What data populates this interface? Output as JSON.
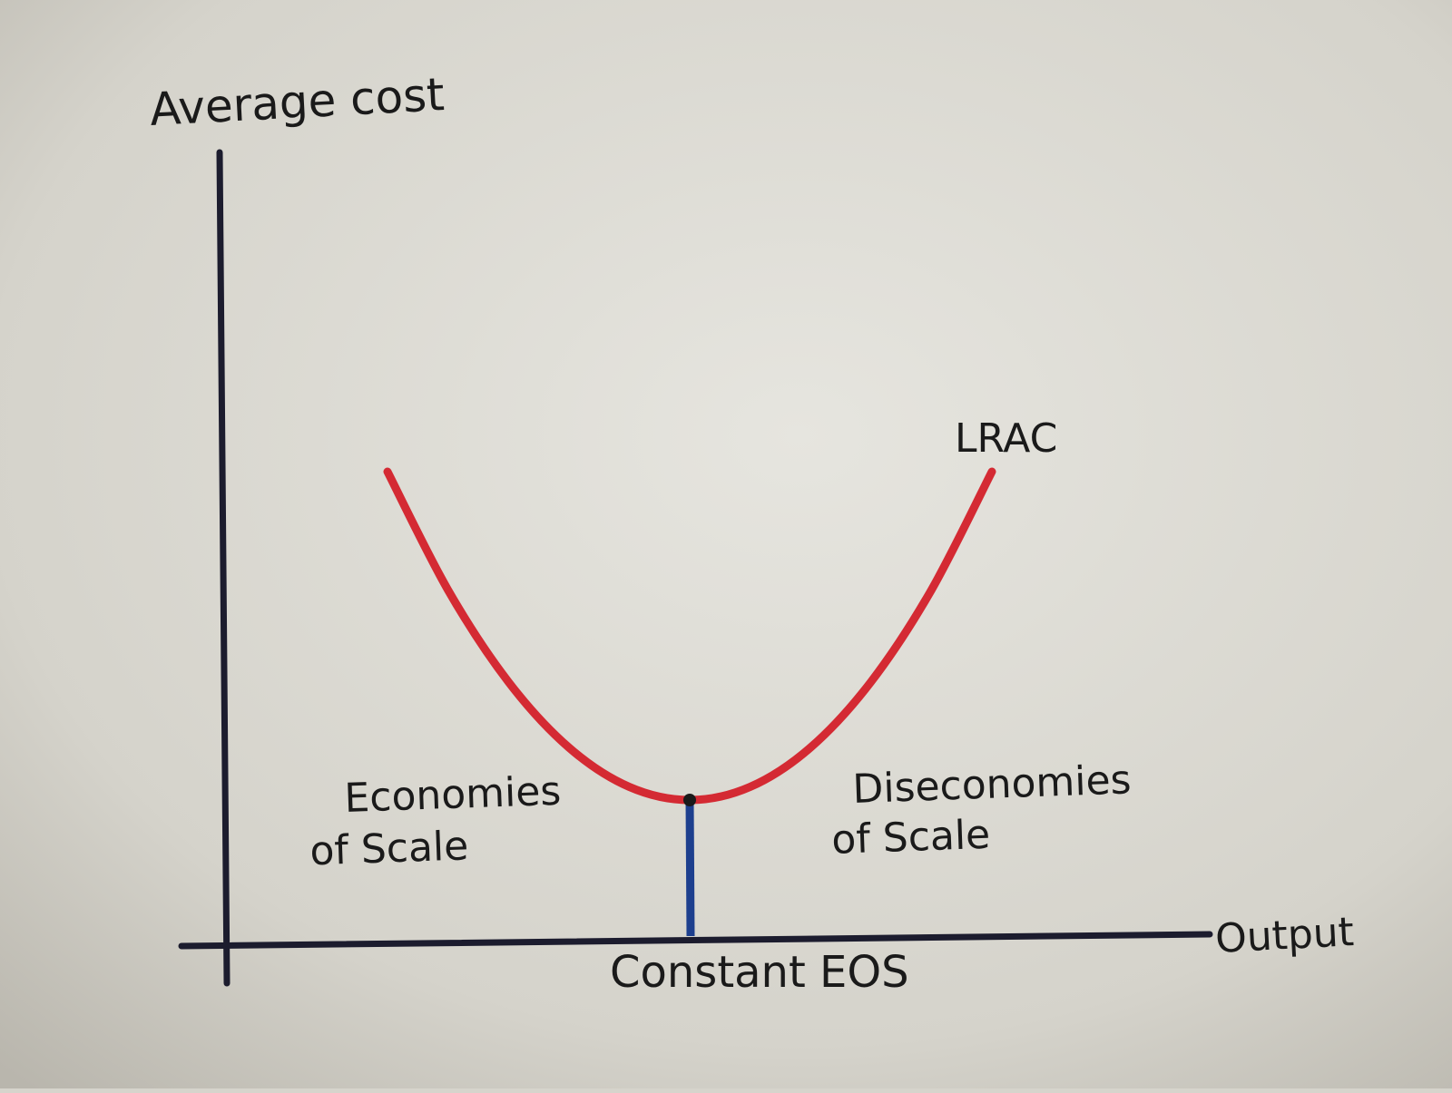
{
  "chart_data": {
    "type": "line",
    "title": "",
    "xlabel": "Output",
    "ylabel": "Average cost",
    "grid": false,
    "ticks": "none",
    "series": [
      {
        "name": "LRAC",
        "color": "#d42a33",
        "x": [
          0,
          10,
          20,
          30,
          40,
          50,
          60,
          70,
          80,
          90,
          100
        ],
        "y": [
          100,
          64,
          36,
          16,
          4,
          0,
          4,
          16,
          36,
          64,
          100
        ]
      }
    ],
    "marker": {
      "label": "Constant EOS",
      "x": 50,
      "y": 0,
      "color": "#1d3f8e"
    },
    "annotations": [
      {
        "id": "economies",
        "lines": [
          "Economies",
          "of   Scale"
        ]
      },
      {
        "id": "diseconomies",
        "lines": [
          "Diseconomies",
          "of   Scale"
        ]
      }
    ]
  },
  "colors": {
    "axis": "#1c1c2e",
    "ink": "#1a1a1a",
    "paper": "#d6d4cc"
  }
}
